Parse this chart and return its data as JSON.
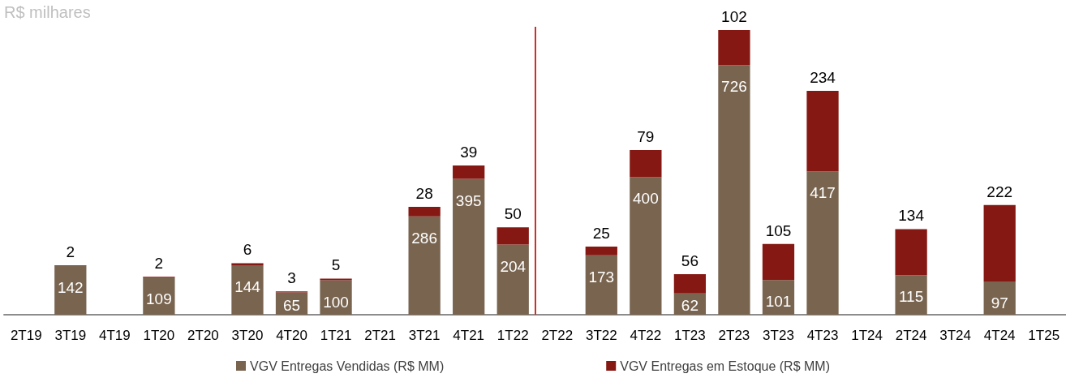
{
  "chart_data": {
    "type": "bar",
    "title": "R$ milhares",
    "categories": [
      "2T19",
      "3T19",
      "4T19",
      "1T20",
      "2T20",
      "3T20",
      "4T20",
      "1T21",
      "2T21",
      "3T21",
      "4T21",
      "1T22",
      "2T22",
      "3T22",
      "4T22",
      "1T23",
      "2T23",
      "3T23",
      "4T23",
      "1T24",
      "2T24",
      "3T24",
      "4T24",
      "1T25"
    ],
    "series": [
      {
        "name": "VGV Entregas Vendidas (R$ MM)",
        "color": "#78644f",
        "values": [
          null,
          142,
          null,
          109,
          null,
          144,
          65,
          100,
          null,
          286,
          395,
          204,
          null,
          173,
          400,
          62,
          726,
          101,
          417,
          null,
          115,
          null,
          97,
          null
        ]
      },
      {
        "name": "VGV Entregas em Estoque (R$ MM)",
        "color": "#851812",
        "values": [
          null,
          2,
          null,
          2,
          null,
          6,
          3,
          5,
          null,
          28,
          39,
          50,
          null,
          25,
          79,
          56,
          102,
          105,
          234,
          null,
          134,
          null,
          222,
          null
        ]
      }
    ],
    "stacked": true,
    "data_labels": true,
    "grid": false,
    "legend": "bottom",
    "ref_lines": [
      {
        "axis": "x",
        "value": "2T22",
        "color": "#c8322a"
      }
    ]
  }
}
